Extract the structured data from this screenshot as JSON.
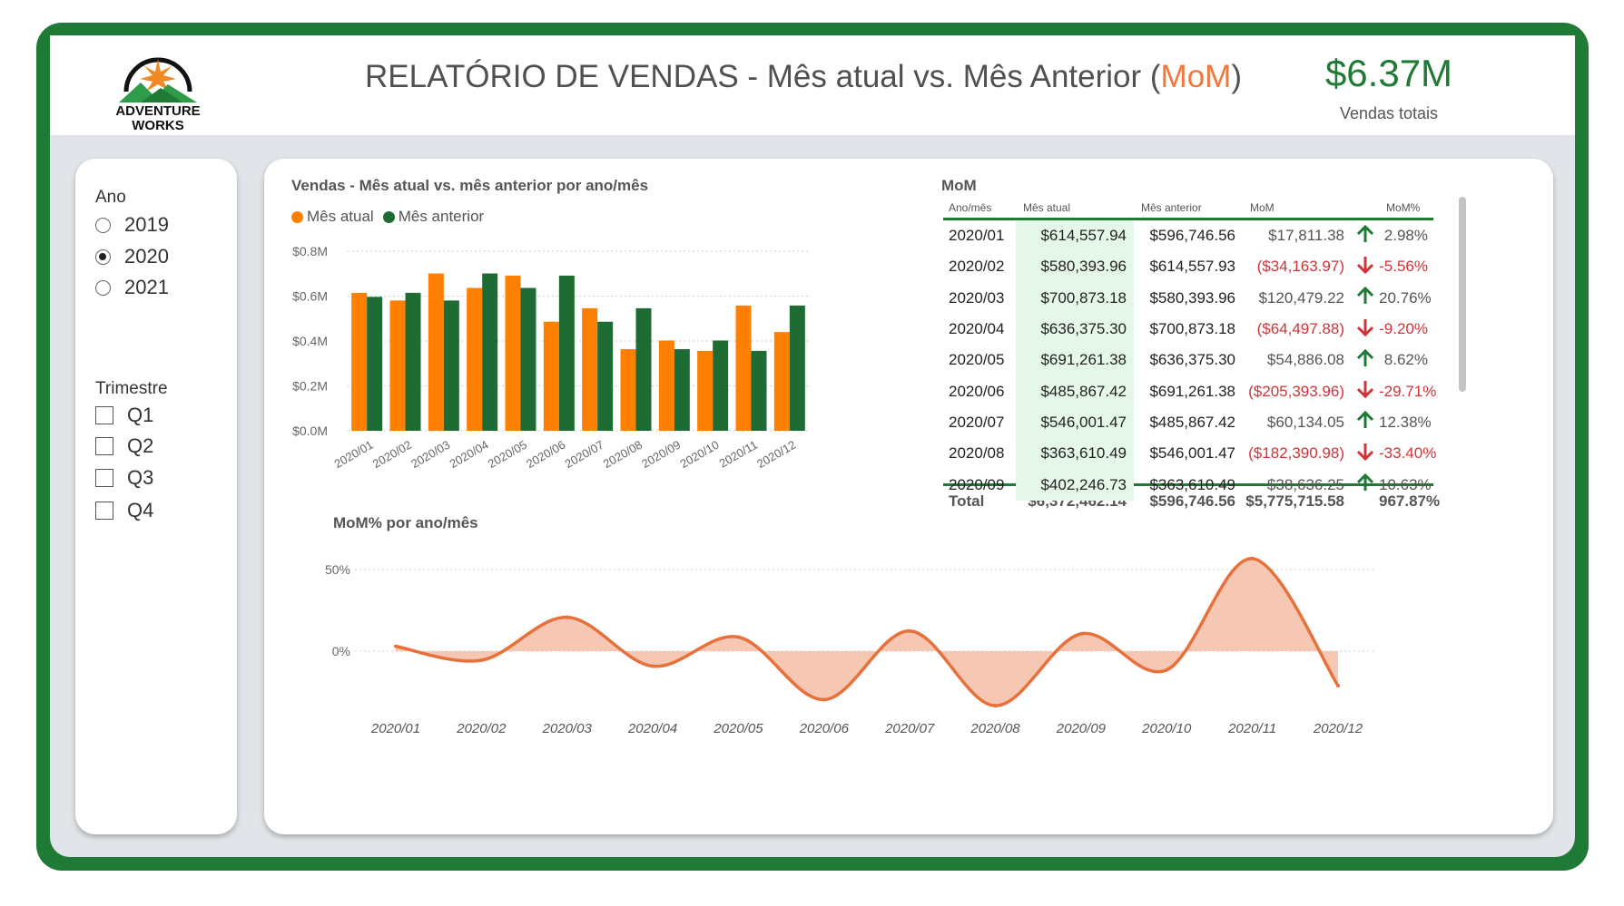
{
  "header": {
    "logo_line1": "ADVENTURE",
    "logo_line2": "WORKS",
    "title_main": "RELATÓRIO DE VENDAS - Mês atual vs. Mês Anterior (",
    "title_highlight": "MoM",
    "title_end": ")",
    "kpi_value": "$6.37M",
    "kpi_label": "Vendas totais"
  },
  "colors": {
    "brand_green": "#1e7a34",
    "current_month_orange": "#ff8000",
    "previous_month_green": "#1e6b34",
    "area_line": "#e8703a",
    "area_fill": "#f5c2ab",
    "negative_red": "#d13438",
    "row_highlight": "#e5f7e8"
  },
  "slicers": {
    "year_title": "Ano",
    "years": [
      {
        "label": "2019",
        "selected": false
      },
      {
        "label": "2020",
        "selected": true
      },
      {
        "label": "2021",
        "selected": false
      }
    ],
    "quarter_title": "Trimestre",
    "quarters": [
      {
        "label": "Q1",
        "checked": false
      },
      {
        "label": "Q2",
        "checked": false
      },
      {
        "label": "Q3",
        "checked": false
      },
      {
        "label": "Q4",
        "checked": false
      }
    ]
  },
  "bar_chart_labels": {
    "title": "Vendas - Mês atual vs. mês anterior por ano/mês",
    "legend_current": "Mês atual",
    "legend_previous": "Mês anterior"
  },
  "mom_table": {
    "title": "MoM",
    "headers": [
      "Ano/mês",
      "Mês atual",
      "Mês anterior",
      "MoM",
      "MoM%"
    ],
    "rows": [
      {
        "month": "2020/01",
        "current": "$614,557.94",
        "previous": "$596,746.56",
        "mom": "$17,811.38",
        "dir": "up",
        "pct": "2.98%"
      },
      {
        "month": "2020/02",
        "current": "$580,393.96",
        "previous": "$614,557.93",
        "mom": "($34,163.97)",
        "dir": "down",
        "pct": "-5.56%"
      },
      {
        "month": "2020/03",
        "current": "$700,873.18",
        "previous": "$580,393.96",
        "mom": "$120,479.22",
        "dir": "up",
        "pct": "20.76%"
      },
      {
        "month": "2020/04",
        "current": "$636,375.30",
        "previous": "$700,873.18",
        "mom": "($64,497.88)",
        "dir": "down",
        "pct": "-9.20%"
      },
      {
        "month": "2020/05",
        "current": "$691,261.38",
        "previous": "$636,375.30",
        "mom": "$54,886.08",
        "dir": "up",
        "pct": "8.62%"
      },
      {
        "month": "2020/06",
        "current": "$485,867.42",
        "previous": "$691,261.38",
        "mom": "($205,393.96)",
        "dir": "down",
        "pct": "-29.71%"
      },
      {
        "month": "2020/07",
        "current": "$546,001.47",
        "previous": "$485,867.42",
        "mom": "$60,134.05",
        "dir": "up",
        "pct": "12.38%"
      },
      {
        "month": "2020/08",
        "current": "$363,610.49",
        "previous": "$546,001.47",
        "mom": "($182,390.98)",
        "dir": "down",
        "pct": "-33.40%"
      },
      {
        "month": "2020/09",
        "current": "$402,246.73",
        "previous": "$363,610.49",
        "mom": "$38,636.25",
        "dir": "up",
        "pct": "10.63%"
      }
    ],
    "total": {
      "label": "Total",
      "current": "$6,372,462.14",
      "previous": "$596,746.56",
      "mom": "$5,775,715.58",
      "pct": "967.87%"
    }
  },
  "area_chart_labels": {
    "title": "MoM% por ano/mês"
  },
  "chart_data": [
    {
      "type": "bar",
      "title": "Vendas - Mês atual vs. mês anterior por ano/mês",
      "xlabel": "",
      "ylabel": "",
      "categories": [
        "2020/01",
        "2020/02",
        "2020/03",
        "2020/04",
        "2020/05",
        "2020/06",
        "2020/07",
        "2020/08",
        "2020/09",
        "2020/10",
        "2020/11",
        "2020/12"
      ],
      "series": [
        {
          "name": "Mês atual",
          "values": [
            0.6146,
            0.5804,
            0.7009,
            0.6364,
            0.6913,
            0.4859,
            0.546,
            0.3636,
            0.4022,
            0.356,
            0.558,
            0.44
          ]
        },
        {
          "name": "Mês anterior",
          "values": [
            0.5967,
            0.6146,
            0.5804,
            0.7009,
            0.6364,
            0.6913,
            0.4859,
            0.546,
            0.3636,
            0.4022,
            0.356,
            0.558
          ]
        }
      ],
      "yticks": [
        "$0.0M",
        "$0.2M",
        "$0.4M",
        "$0.6M",
        "$0.8M"
      ],
      "ylim": [
        0,
        0.8
      ],
      "grid": true,
      "legend": "top-left"
    },
    {
      "type": "area",
      "title": "MoM% por ano/mês",
      "xlabel": "",
      "ylabel": "",
      "categories": [
        "2020/01",
        "2020/02",
        "2020/03",
        "2020/04",
        "2020/05",
        "2020/06",
        "2020/07",
        "2020/08",
        "2020/09",
        "2020/10",
        "2020/11",
        "2020/12"
      ],
      "values": [
        2.98,
        -5.56,
        20.76,
        -9.2,
        8.62,
        -29.71,
        12.38,
        -33.4,
        10.63,
        -11.5,
        56.74,
        -21.15
      ],
      "yticks": [
        "0%",
        "50%"
      ],
      "grid": true
    }
  ]
}
